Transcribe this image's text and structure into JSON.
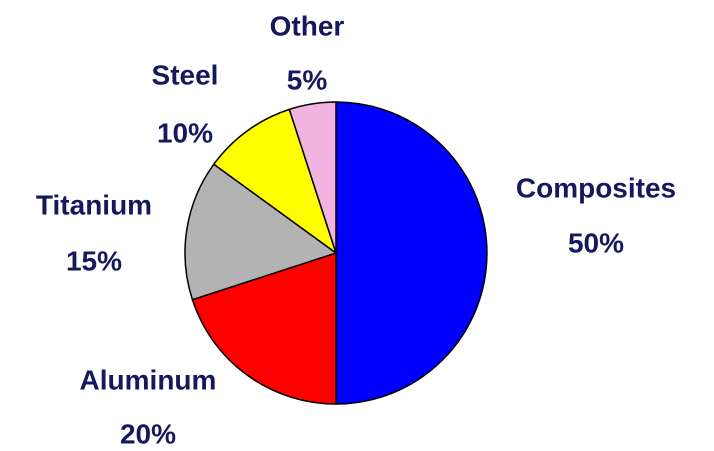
{
  "chart_data": {
    "type": "pie",
    "categories": [
      "Composites",
      "Aluminum",
      "Titanium",
      "Steel",
      "Other"
    ],
    "values": [
      50,
      20,
      15,
      10,
      5
    ],
    "value_labels": [
      "50%",
      "20%",
      "15%",
      "10%",
      "5%"
    ],
    "colors": [
      "#0000ff",
      "#ff0000",
      "#b3b3b3",
      "#ffff00",
      "#f2b3e0"
    ]
  }
}
